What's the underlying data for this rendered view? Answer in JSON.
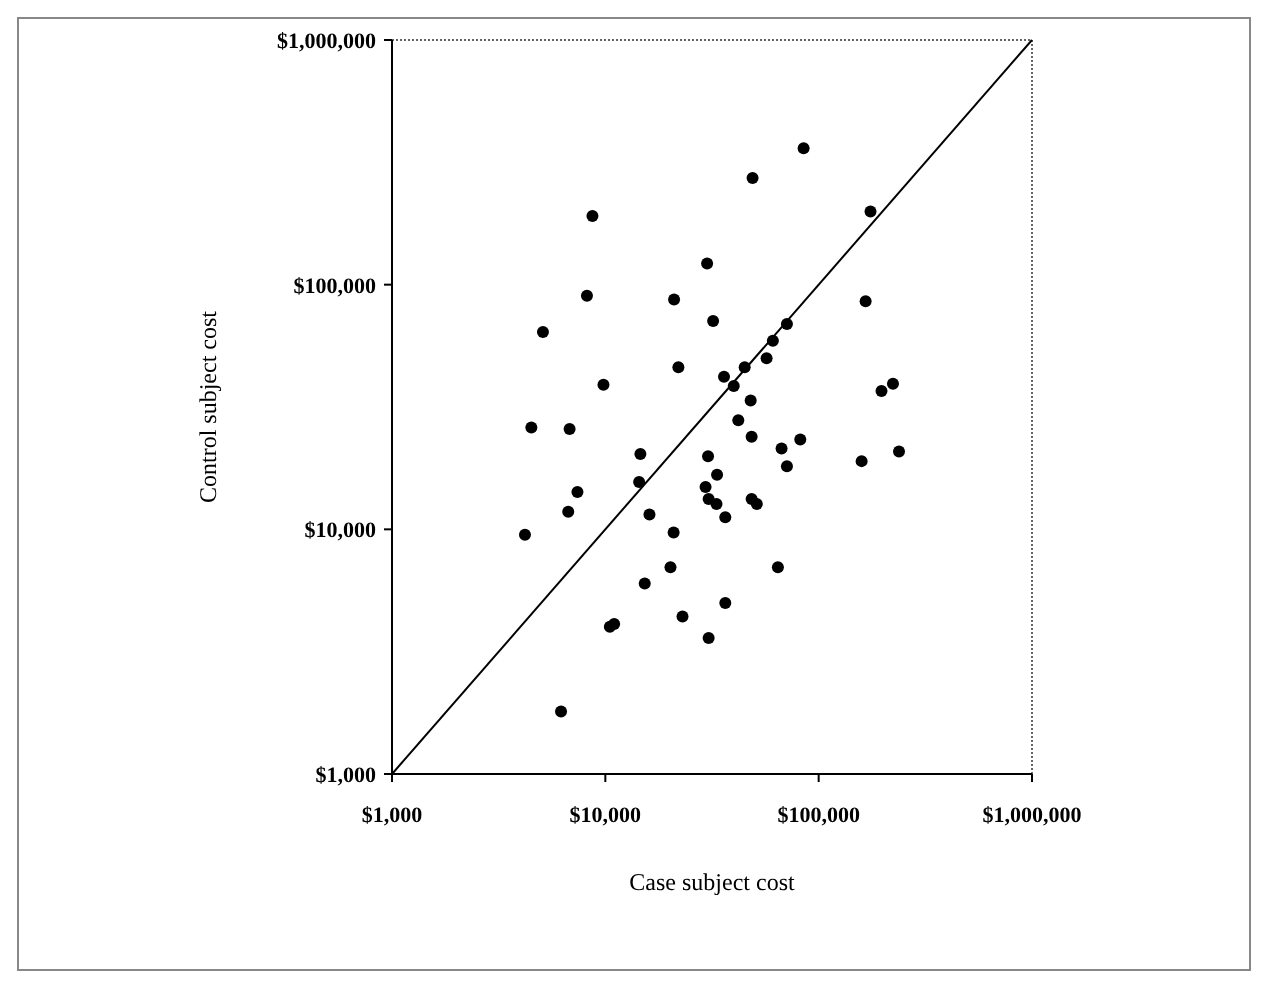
{
  "chart_data": {
    "type": "scatter",
    "xlabel": "Case subject cost",
    "ylabel": "Control subject cost",
    "log": "xy",
    "xlim": [
      1000,
      1000000
    ],
    "ylim": [
      1000,
      1000000
    ],
    "xticks": [
      {
        "value": 1000,
        "label": "$1,000"
      },
      {
        "value": 10000,
        "label": "$10,000"
      },
      {
        "value": 100000,
        "label": "$100,000"
      },
      {
        "value": 1000000,
        "label": "$1,000,000"
      }
    ],
    "yticks": [
      {
        "value": 1000,
        "label": "$1,000"
      },
      {
        "value": 10000,
        "label": "$10,000"
      },
      {
        "value": 100000,
        "label": "$100,000"
      },
      {
        "value": 1000000,
        "label": "$1,000,000"
      }
    ],
    "grid": false,
    "marker": "circle",
    "series": [
      {
        "color": "#000000",
        "x": [
          85000,
          49000,
          8700,
          175000,
          30000,
          8200,
          21000,
          166000,
          5100,
          32000,
          71000,
          61000,
          57000,
          45000,
          22000,
          9800,
          36000,
          40000,
          223000,
          197000,
          48000,
          4500,
          6800,
          42000,
          48500,
          82000,
          67000,
          14600,
          30300,
          238000,
          159000,
          71000,
          33400,
          14400,
          29500,
          7400,
          30500,
          33200,
          48500,
          51300,
          6700,
          16100,
          36500,
          20900,
          4200,
          20200,
          64400,
          15300,
          36500,
          23000,
          11000,
          10500,
          30500,
          6200
        ],
        "values": [
          361000,
          273000,
          191000,
          199000,
          122000,
          90000,
          87000,
          85500,
          64000,
          71000,
          69000,
          59000,
          50000,
          46000,
          46000,
          39000,
          42000,
          38500,
          39400,
          36800,
          33600,
          26100,
          25700,
          27900,
          23900,
          23300,
          21400,
          20300,
          19900,
          20800,
          19000,
          18100,
          16700,
          15600,
          14900,
          14200,
          13300,
          12700,
          13300,
          12700,
          11800,
          11500,
          11200,
          9700,
          9500,
          7000,
          7000,
          6000,
          5000,
          4400,
          4100,
          4000,
          3600,
          1800
        ]
      },
      {
        "type": "line",
        "color": "#000000",
        "x": [
          1000,
          1000000
        ],
        "values": [
          1000,
          1000000
        ],
        "marker": "none"
      }
    ]
  }
}
